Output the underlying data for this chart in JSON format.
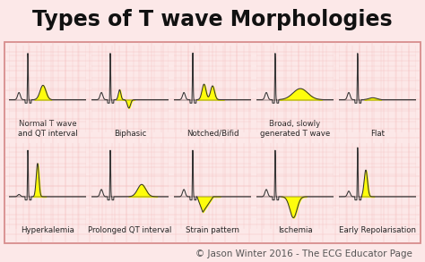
{
  "title": "Types of T wave Morphologies",
  "title_fontsize": 17,
  "background_outer": "#fce8e8",
  "box_color": "#ffffff",
  "ecg_color": "#333333",
  "fill_color": "#ffff00",
  "copyright": "© Jason Winter 2016 - The ECG Educator Page",
  "copyright_fontsize": 7.5,
  "labels_row1": [
    "Normal T wave\nand QT interval",
    "Biphasic",
    "Notched/Bifid",
    "Broad, slowly\ngenerated T wave",
    "Flat"
  ],
  "labels_row2": [
    "Hyperkalemia",
    "Prolonged QT interval",
    "Strain pattern",
    "Ischemia",
    "Early Repolarisation"
  ],
  "label_fontsize": 6.2,
  "grid_line_color": "#f0b0b0",
  "border_color": "#d08080"
}
